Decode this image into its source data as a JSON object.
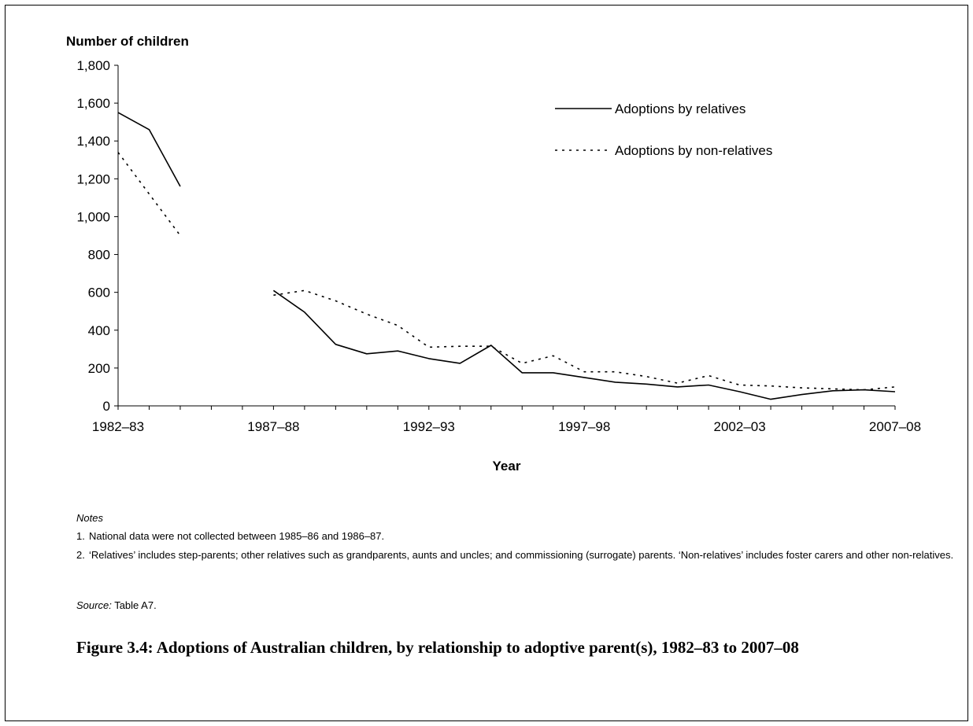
{
  "chart_data": {
    "type": "line",
    "ylabel": "Number of children",
    "xlabel": "Year",
    "ylim": [
      0,
      1800
    ],
    "yticks": [
      "0",
      "200",
      "400",
      "600",
      "800",
      "1,000",
      "1,200",
      "1,400",
      "1,600",
      "1,800"
    ],
    "categories": [
      "1982–83",
      "1983–84",
      "1984–85",
      "1985–86",
      "1986–87",
      "1987–88",
      "1988–89",
      "1989–90",
      "1990–91",
      "1991–92",
      "1992–93",
      "1993–94",
      "1994–95",
      "1995–96",
      "1996–97",
      "1997–98",
      "1998–99",
      "1999–00",
      "2000–01",
      "2001–02",
      "2002–03",
      "2003–04",
      "2004–05",
      "2005–06",
      "2006–07",
      "2007–08"
    ],
    "xtick_labels": [
      "1982–83",
      "1987–88",
      "1992–93",
      "1997–98",
      "2002–03",
      "2007–08"
    ],
    "series": [
      {
        "name": "Adoptions by relatives",
        "style": "solid",
        "values": [
          1550,
          1460,
          1160,
          null,
          null,
          610,
          495,
          325,
          275,
          290,
          250,
          225,
          320,
          175,
          175,
          150,
          125,
          115,
          100,
          110,
          75,
          35,
          60,
          80,
          85,
          75
        ]
      },
      {
        "name": "Adoptions by non-relatives",
        "style": "dotted",
        "values": [
          1340,
          1120,
          900,
          null,
          null,
          585,
          610,
          555,
          485,
          425,
          310,
          315,
          315,
          225,
          265,
          180,
          180,
          155,
          120,
          160,
          110,
          105,
          95,
          90,
          85,
          100
        ]
      }
    ],
    "legend_position": "top-right",
    "grid": false
  },
  "notes": {
    "heading": "Notes",
    "items": [
      {
        "num": "1.",
        "text": "National data were not collected between 1985–86 and 1986–87."
      },
      {
        "num": "2.",
        "text": "‘Relatives’ includes step-parents; other relatives such as grandparents, aunts and uncles; and commissioning (surrogate) parents. ‘Non-relatives’ includes foster carers and other non-relatives."
      }
    ]
  },
  "source": {
    "label": "Source:",
    "text": " Table A7."
  },
  "caption": "Figure 3.4: Adoptions of Australian children, by relationship to adoptive parent(s), 1982–83 to 2007–08"
}
